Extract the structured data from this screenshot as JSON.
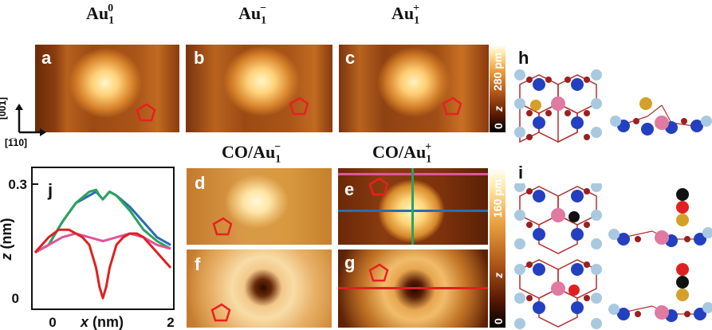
{
  "titles": {
    "a": {
      "base": "Au",
      "sub": "1",
      "sup": "0"
    },
    "b": {
      "base": "Au",
      "sub": "1",
      "sup": "−"
    },
    "c": {
      "base": "Au",
      "sub": "1",
      "sup": "+"
    },
    "d": {
      "prefix": "CO/",
      "base": "Au",
      "sub": "1",
      "sup": "−"
    },
    "e": {
      "prefix": "CO/",
      "base": "Au",
      "sub": "1",
      "sup": "+"
    }
  },
  "panel_labels": {
    "a": "a",
    "b": "b",
    "c": "c",
    "d": "d",
    "e": "e",
    "f": "f",
    "g": "g",
    "h": "h",
    "i": "i",
    "j": "j"
  },
  "colorbar_top": {
    "min": "0",
    "label": "z",
    "max": "280 pm"
  },
  "colorbar_bottom": {
    "min": "0",
    "label": "z",
    "max": "160 pm"
  },
  "axes_arrows": {
    "vertical": "[001]",
    "horizontal": "[1̅10]"
  },
  "chart_data": {
    "type": "line",
    "xlabel": "x (nm)",
    "ylabel": "z (nm)",
    "xlim": [
      0,
      2
    ],
    "ylim": [
      0,
      0.33
    ],
    "xticks": [
      "0",
      "2"
    ],
    "yticks": [
      "0",
      "0.3"
    ],
    "series": [
      {
        "color": "#2b6cb0",
        "x": [
          0,
          0.2,
          0.4,
          0.6,
          0.8,
          0.9,
          0.95,
          1.0,
          1.05,
          1.1,
          1.2,
          1.4,
          1.6,
          1.8,
          2.0
        ],
        "y": [
          0.12,
          0.14,
          0.2,
          0.25,
          0.27,
          0.28,
          0.27,
          0.26,
          0.27,
          0.28,
          0.27,
          0.24,
          0.2,
          0.16,
          0.14
        ]
      },
      {
        "color": "#2aa35a",
        "x": [
          0,
          0.2,
          0.4,
          0.6,
          0.8,
          0.9,
          0.95,
          1.0,
          1.05,
          1.1,
          1.2,
          1.4,
          1.6,
          1.8,
          2.0
        ],
        "y": [
          0.12,
          0.14,
          0.2,
          0.25,
          0.28,
          0.285,
          0.27,
          0.26,
          0.27,
          0.28,
          0.27,
          0.23,
          0.18,
          0.15,
          0.13
        ]
      },
      {
        "color": "#e0559a",
        "x": [
          0,
          0.2,
          0.4,
          0.6,
          0.8,
          1.0,
          1.2,
          1.4,
          1.6,
          1.8,
          2.0
        ],
        "y": [
          0.12,
          0.14,
          0.16,
          0.17,
          0.16,
          0.15,
          0.16,
          0.17,
          0.16,
          0.14,
          0.13
        ]
      },
      {
        "color": "#e02020",
        "x": [
          0,
          0.1,
          0.2,
          0.35,
          0.5,
          0.6,
          0.7,
          0.8,
          0.9,
          0.95,
          1.0,
          1.05,
          1.1,
          1.2,
          1.3,
          1.4,
          1.5,
          1.6,
          1.75,
          1.9,
          2.0
        ],
        "y": [
          0.12,
          0.14,
          0.16,
          0.18,
          0.18,
          0.17,
          0.16,
          0.14,
          0.08,
          0.03,
          0.0,
          0.03,
          0.08,
          0.14,
          0.16,
          0.17,
          0.17,
          0.16,
          0.13,
          0.1,
          0.08
        ]
      }
    ]
  }
}
